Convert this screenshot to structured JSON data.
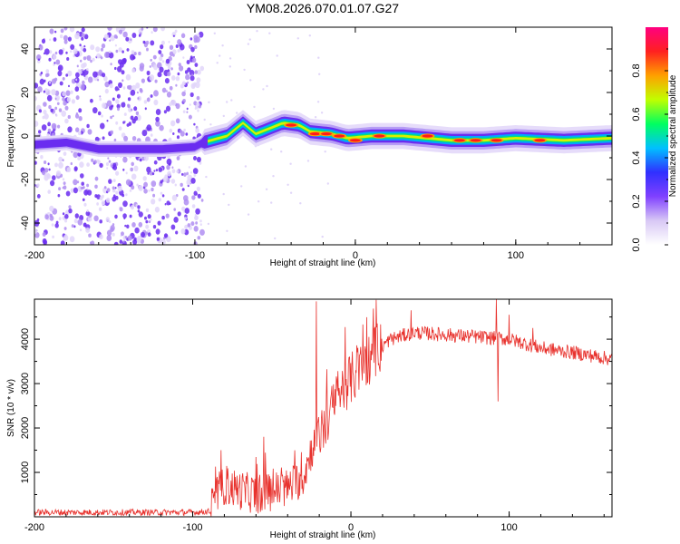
{
  "title": "YM08.2026.070.01.07.G27",
  "chart_data": [
    {
      "type": "heatmap",
      "name": "spectrogram",
      "xlabel": "Height of straight line (km)",
      "ylabel": "Frequency (Hz)",
      "xlim": [
        -200,
        160
      ],
      "ylim": [
        -50,
        50
      ],
      "xticks": [
        -200,
        -100,
        0,
        100
      ],
      "yticks": [
        -40,
        -20,
        0,
        20,
        40
      ],
      "noise_region_x": [
        -200,
        -95
      ],
      "ridge": [
        {
          "x": -200,
          "y": -4
        },
        {
          "x": -180,
          "y": -3
        },
        {
          "x": -160,
          "y": -6
        },
        {
          "x": -140,
          "y": -6
        },
        {
          "x": -120,
          "y": -6
        },
        {
          "x": -100,
          "y": -5
        },
        {
          "x": -95,
          "y": -3
        },
        {
          "x": -80,
          "y": 0
        },
        {
          "x": -70,
          "y": 6
        },
        {
          "x": -62,
          "y": 1
        },
        {
          "x": -55,
          "y": 3
        },
        {
          "x": -45,
          "y": 6
        },
        {
          "x": -35,
          "y": 5
        },
        {
          "x": -28,
          "y": 2
        },
        {
          "x": -15,
          "y": 1
        },
        {
          "x": -5,
          "y": -1
        },
        {
          "x": 10,
          "y": 0
        },
        {
          "x": 30,
          "y": 0
        },
        {
          "x": 60,
          "y": -2
        },
        {
          "x": 80,
          "y": -2
        },
        {
          "x": 100,
          "y": -1
        },
        {
          "x": 130,
          "y": -2
        },
        {
          "x": 160,
          "y": -1
        }
      ],
      "peaks": [
        {
          "x": -40,
          "y": 5
        },
        {
          "x": -25,
          "y": 1
        },
        {
          "x": -18,
          "y": 1
        },
        {
          "x": -10,
          "y": 0
        },
        {
          "x": 0,
          "y": -2
        },
        {
          "x": 15,
          "y": 0
        },
        {
          "x": 45,
          "y": 0
        },
        {
          "x": 65,
          "y": -2
        },
        {
          "x": 75,
          "y": -2
        },
        {
          "x": 88,
          "y": -2
        },
        {
          "x": 115,
          "y": -2
        }
      ],
      "colorbar": {
        "label": "Normalized spectral amplitude",
        "range": [
          0,
          1
        ],
        "ticks": [
          "0.0",
          "0.2",
          "0.4",
          "0.6",
          "0.8"
        ],
        "tick_values": [
          0,
          0.2,
          0.4,
          0.6,
          0.8
        ],
        "colors": [
          "#ffffff",
          "#d8c8f5",
          "#8040ff",
          "#3030ff",
          "#00c0ff",
          "#00ff60",
          "#c0ff00",
          "#ffa000",
          "#ff2020",
          "#ff0080"
        ]
      }
    },
    {
      "type": "line",
      "name": "snr",
      "xlabel": "Height of straight line (km)",
      "ylabel": "SNR (10 * v/v)",
      "xlim": [
        -200,
        165
      ],
      "ylim": [
        0,
        4900
      ],
      "xticks": [
        -200,
        -100,
        0,
        100
      ],
      "yticks": [
        1000,
        2000,
        3000,
        4000
      ],
      "color": "#e8322d",
      "trend": [
        {
          "x": -200,
          "y": 100
        },
        {
          "x": -100,
          "y": 100
        },
        {
          "x": -89,
          "y": 120
        },
        {
          "x": -85,
          "y": 500
        },
        {
          "x": -80,
          "y": 700
        },
        {
          "x": -60,
          "y": 500
        },
        {
          "x": -40,
          "y": 650
        },
        {
          "x": -30,
          "y": 900
        },
        {
          "x": -25,
          "y": 1500
        },
        {
          "x": -15,
          "y": 2200
        },
        {
          "x": -5,
          "y": 2900
        },
        {
          "x": 5,
          "y": 3300
        },
        {
          "x": 15,
          "y": 3700
        },
        {
          "x": 25,
          "y": 4000
        },
        {
          "x": 40,
          "y": 4150
        },
        {
          "x": 60,
          "y": 4100
        },
        {
          "x": 80,
          "y": 4050
        },
        {
          "x": 100,
          "y": 4000
        },
        {
          "x": 120,
          "y": 3800
        },
        {
          "x": 140,
          "y": 3700
        },
        {
          "x": 165,
          "y": 3550
        }
      ],
      "spikes": [
        {
          "x": -22,
          "y": 4850
        },
        {
          "x": -55,
          "y": 1800
        },
        {
          "x": -82,
          "y": 1500
        },
        {
          "x": 38,
          "y": 4650
        },
        {
          "x": 92,
          "y": 4900
        },
        {
          "x": 93,
          "y": 2600
        },
        {
          "x": 100,
          "y": 4550
        },
        {
          "x": 115,
          "y": 4250
        }
      ]
    }
  ]
}
